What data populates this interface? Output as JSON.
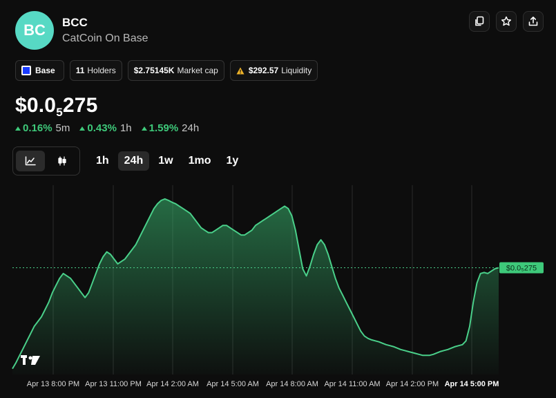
{
  "token": {
    "avatar_text": "BC",
    "symbol": "BCC",
    "name": "CatCoin On Base",
    "avatar_color": "#57d9c4"
  },
  "actions": [
    {
      "icon": "copy-icon"
    },
    {
      "icon": "star-icon"
    },
    {
      "icon": "share-icon"
    }
  ],
  "badges": {
    "chain": "Base",
    "holders_value": "11",
    "holders_label": "Holders",
    "market_cap_value": "$2.75145K",
    "market_cap_label": "Market cap",
    "liquidity_value": "$292.57",
    "liquidity_label": "Liquidity"
  },
  "price": {
    "main": "$0.0",
    "subscript": "5",
    "tail": "275"
  },
  "changes": [
    {
      "pct": "0.16%",
      "period": "5m"
    },
    {
      "pct": "0.43%",
      "period": "1h"
    },
    {
      "pct": "1.59%",
      "period": "24h"
    }
  ],
  "ranges": [
    {
      "label": "1h",
      "active": false
    },
    {
      "label": "24h",
      "active": true
    },
    {
      "label": "1w",
      "active": false
    },
    {
      "label": "1mo",
      "active": false
    },
    {
      "label": "1y",
      "active": false
    }
  ],
  "colors": {
    "up": "#3ec97a",
    "line": "#4ad08a",
    "background": "#0d0d0d"
  },
  "chart_data": {
    "type": "area",
    "x_ticks": [
      "Apr 13 8:00 PM",
      "Apr 13 11:00 PM",
      "Apr 14 2:00 AM",
      "Apr 14 5:00 AM",
      "Apr 14 8:00 AM",
      "Apr 14 11:00 AM",
      "Apr 14 2:00 PM",
      "Apr 14 5:00 PM"
    ],
    "x_tick_bold_index": 7,
    "current_price_label": "$0.0₅275",
    "values": [
      0.62,
      0.75,
      0.9,
      1.05,
      1.2,
      1.35,
      1.5,
      1.6,
      1.7,
      1.85,
      2.0,
      2.2,
      2.35,
      2.5,
      2.6,
      2.55,
      2.5,
      2.4,
      2.3,
      2.2,
      2.1,
      2.2,
      2.4,
      2.6,
      2.8,
      2.95,
      3.05,
      3.0,
      2.9,
      2.8,
      2.85,
      2.9,
      3.0,
      3.1,
      3.2,
      3.35,
      3.5,
      3.65,
      3.8,
      3.95,
      4.05,
      4.12,
      4.15,
      4.12,
      4.08,
      4.05,
      4.0,
      3.95,
      3.9,
      3.85,
      3.75,
      3.65,
      3.55,
      3.5,
      3.45,
      3.45,
      3.5,
      3.55,
      3.6,
      3.6,
      3.55,
      3.5,
      3.45,
      3.4,
      3.4,
      3.45,
      3.5,
      3.6,
      3.65,
      3.7,
      3.75,
      3.8,
      3.85,
      3.9,
      3.95,
      4.0,
      3.95,
      3.8,
      3.5,
      3.1,
      2.7,
      2.55,
      2.75,
      3.0,
      3.2,
      3.3,
      3.2,
      3.0,
      2.75,
      2.5,
      2.3,
      2.15,
      2.0,
      1.85,
      1.7,
      1.55,
      1.4,
      1.3,
      1.25,
      1.22,
      1.2,
      1.18,
      1.15,
      1.12,
      1.1,
      1.08,
      1.05,
      1.02,
      1.0,
      0.98,
      0.96,
      0.94,
      0.92,
      0.9,
      0.9,
      0.9,
      0.92,
      0.95,
      0.98,
      1.0,
      1.02,
      1.05,
      1.08,
      1.1,
      1.12,
      1.2,
      1.5,
      2.0,
      2.4,
      2.6,
      2.62,
      2.6,
      2.65,
      2.7,
      2.72
    ],
    "y_range": [
      0.5,
      4.35
    ],
    "ylabel": "",
    "xlabel": "",
    "grid": "vertical"
  }
}
